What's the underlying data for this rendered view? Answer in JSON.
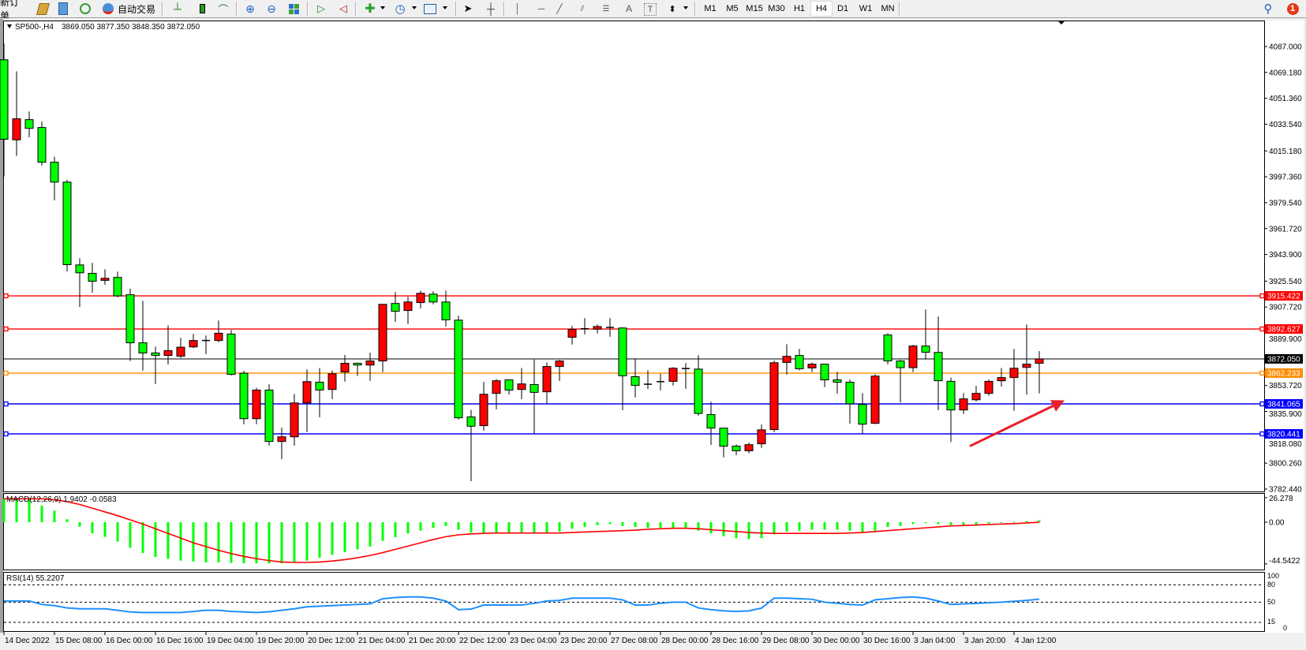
{
  "toolbar": {
    "new_order": "新订单",
    "auto_trading": "自动交易",
    "text_tool": "A",
    "label_tool": "T",
    "timeframes": [
      "M1",
      "M5",
      "M15",
      "M30",
      "H1",
      "H4",
      "D1",
      "W1",
      "MN"
    ],
    "selected_timeframe": "H4",
    "notification_count": "1"
  },
  "chart_header": {
    "symbol": "SP500-,H4",
    "ohlc": "3869.050 3877.350 3848.350 3872.050"
  },
  "macd": {
    "label": "MACD(12,26,9) 1.9402 -0.0583",
    "axis_labels": [
      "26.278",
      "0.00",
      "-44.5422"
    ]
  },
  "rsi": {
    "label": "RSI(14) 55.2207",
    "axis_labels": [
      "100",
      "80",
      "50",
      "15",
      "0"
    ]
  },
  "colors": {
    "bull": "#ff0000",
    "bear": "#00ff00",
    "macd_hist": "#00ff00",
    "macd_signal": "#ff0000",
    "rsi": "#1e90ff",
    "arrow": "#e8202a"
  },
  "chart_data": {
    "type": "candlestick",
    "symbol": "SP500-",
    "timeframe": "H4",
    "price_axis": [
      "4087.000",
      "4069.180",
      "4051.360",
      "4033.540",
      "4015.180",
      "3997.360",
      "3979.540",
      "3961.720",
      "3943.900",
      "3925.540",
      "3907.720",
      "3889.900",
      "3853.720",
      "3835.900",
      "3818.080",
      "3800.260",
      "3782.440"
    ],
    "ylim": [
      3782.44,
      4087.0
    ],
    "time_labels": [
      "14 Dec 2022",
      "15 Dec 08:00",
      "16 Dec 00:00",
      "16 Dec 16:00",
      "19 Dec 04:00",
      "19 Dec 20:00",
      "20 Dec 12:00",
      "21 Dec 04:00",
      "21 Dec 20:00",
      "22 Dec 12:00",
      "23 Dec 04:00",
      "23 Dec 20:00",
      "27 Dec 08:00",
      "28 Dec 00:00",
      "28 Dec 16:00",
      "29 Dec 08:00",
      "30 Dec 00:00",
      "30 Dec 16:00",
      "3 Jan 04:00",
      "3 Jan 20:00",
      "4 Jan 12:00"
    ],
    "bars_per_time_label": 4,
    "ohlc": [
      [
        4077.9,
        4089.1,
        3997.7,
        4023.2
      ],
      [
        4022.8,
        4070.0,
        4011.8,
        4037.3
      ],
      [
        4036.7,
        4042.3,
        4024.6,
        4030.7
      ],
      [
        4031.3,
        4035.3,
        4005.0,
        4007.4
      ],
      [
        4007.4,
        4011.2,
        3981.1,
        3993.7
      ],
      [
        3993.7,
        3995.3,
        3932.3,
        3936.9
      ],
      [
        3936.7,
        3941.3,
        3907.8,
        3931.3
      ],
      [
        3930.9,
        3938.1,
        3917.6,
        3925.5
      ],
      [
        3926.1,
        3933.7,
        3923.0,
        3927.5
      ],
      [
        3928.1,
        3932.1,
        3914.4,
        3915.4
      ],
      [
        3916.2,
        3920.4,
        3870.6,
        3883.1
      ],
      [
        3883.1,
        3912.0,
        3864.0,
        3876.1
      ],
      [
        3876.1,
        3880.5,
        3854.8,
        3874.4
      ],
      [
        3874.4,
        3895.1,
        3868.2,
        3877.7
      ],
      [
        3873.9,
        3886.5,
        3872.6,
        3880.1
      ],
      [
        3880.3,
        3889.3,
        3879.5,
        3884.7
      ],
      [
        3884.7,
        3888.1,
        3875.3,
        3884.7
      ],
      [
        3884.7,
        3898.5,
        3883.5,
        3889.7
      ],
      [
        3889.1,
        3891.9,
        3860.6,
        3861.4
      ],
      [
        3862.2,
        3863.8,
        3827.1,
        3830.9
      ],
      [
        3830.9,
        3852.2,
        3827.1,
        3850.6
      ],
      [
        3850.6,
        3854.6,
        3812.4,
        3815.2
      ],
      [
        3815.2,
        3824.7,
        3803.0,
        3818.4
      ],
      [
        3818.4,
        3847.9,
        3812.4,
        3841.7
      ],
      [
        3841.7,
        3864.8,
        3821.6,
        3856.4
      ],
      [
        3856.0,
        3865.8,
        3831.9,
        3850.6
      ],
      [
        3851.0,
        3864.0,
        3844.3,
        3861.8
      ],
      [
        3863.0,
        3874.7,
        3856.4,
        3869.0
      ],
      [
        3869.0,
        3869.6,
        3860.2,
        3867.8
      ],
      [
        3867.8,
        3876.3,
        3856.8,
        3870.6
      ],
      [
        3870.6,
        3909.6,
        3863.0,
        3909.6
      ],
      [
        3910.2,
        3918.0,
        3897.5,
        3904.8
      ],
      [
        3905.4,
        3914.8,
        3895.9,
        3911.2
      ],
      [
        3910.8,
        3919.0,
        3906.8,
        3917.2
      ],
      [
        3916.6,
        3918.6,
        3909.6,
        3911.2
      ],
      [
        3911.2,
        3919.0,
        3894.3,
        3898.9
      ],
      [
        3898.7,
        3901.8,
        3830.3,
        3831.5
      ],
      [
        3832.1,
        3836.9,
        3787.9,
        3825.7
      ],
      [
        3826.1,
        3856.2,
        3822.6,
        3847.7
      ],
      [
        3848.3,
        3858.2,
        3837.3,
        3857.0
      ],
      [
        3857.6,
        3857.6,
        3847.5,
        3850.6
      ],
      [
        3851.0,
        3865.8,
        3844.3,
        3854.8
      ],
      [
        3854.4,
        3871.6,
        3820.4,
        3849.0
      ],
      [
        3849.4,
        3869.6,
        3841.5,
        3866.8
      ],
      [
        3866.8,
        3871.4,
        3856.8,
        3870.6
      ],
      [
        3886.9,
        3894.7,
        3881.9,
        3892.3
      ],
      [
        3892.8,
        3900.1,
        3888.9,
        3892.6
      ],
      [
        3892.5,
        3895.7,
        3889.5,
        3894.3
      ],
      [
        3893.7,
        3900.1,
        3887.3,
        3893.7
      ],
      [
        3893.3,
        3893.9,
        3836.7,
        3860.4
      ],
      [
        3859.8,
        3872.4,
        3845.5,
        3853.8
      ],
      [
        3854.6,
        3864.2,
        3851.4,
        3854.6
      ],
      [
        3856.4,
        3861.8,
        3850.4,
        3856.4
      ],
      [
        3856.6,
        3866.4,
        3853.6,
        3865.6
      ],
      [
        3865.4,
        3869.2,
        3851.4,
        3865.4
      ],
      [
        3865.0,
        3874.6,
        3832.9,
        3834.5
      ],
      [
        3833.7,
        3842.5,
        3812.8,
        3824.4
      ],
      [
        3824.4,
        3824.4,
        3804.2,
        3812.0
      ],
      [
        3812.0,
        3813.2,
        3805.8,
        3808.8
      ],
      [
        3808.8,
        3814.4,
        3807.0,
        3813.0
      ],
      [
        3813.6,
        3826.9,
        3810.8,
        3823.2
      ],
      [
        3823.4,
        3870.8,
        3821.6,
        3869.4
      ],
      [
        3869.6,
        3882.1,
        3861.2,
        3873.8
      ],
      [
        3874.4,
        3878.9,
        3864.2,
        3865.2
      ],
      [
        3865.8,
        3869.6,
        3863.0,
        3868.4
      ],
      [
        3868.4,
        3868.4,
        3852.6,
        3857.6
      ],
      [
        3857.6,
        3863.2,
        3848.1,
        3856.0
      ],
      [
        3856.0,
        3857.8,
        3827.5,
        3841.1
      ],
      [
        3840.7,
        3848.5,
        3820.4,
        3827.1
      ],
      [
        3827.7,
        3861.4,
        3827.1,
        3860.2
      ],
      [
        3888.5,
        3889.7,
        3868.2,
        3870.6
      ],
      [
        3870.6,
        3871.4,
        3842.1,
        3866.0
      ],
      [
        3866.0,
        3881.7,
        3863.0,
        3880.9
      ],
      [
        3880.9,
        3906.0,
        3871.6,
        3876.6
      ],
      [
        3876.5,
        3901.2,
        3836.7,
        3857.0
      ],
      [
        3856.6,
        3859.2,
        3814.8,
        3836.9
      ],
      [
        3836.9,
        3848.5,
        3834.1,
        3844.5
      ],
      [
        3843.9,
        3853.4,
        3842.7,
        3848.3
      ],
      [
        3848.3,
        3857.8,
        3846.7,
        3856.6
      ],
      [
        3857.0,
        3865.8,
        3853.0,
        3859.2
      ],
      [
        3859.2,
        3878.9,
        3836.3,
        3865.6
      ],
      [
        3866.2,
        3895.7,
        3847.5,
        3868.4
      ],
      [
        3869.05,
        3877.35,
        3848.35,
        3872.05
      ]
    ],
    "horizontal_lines": [
      {
        "price": 3915.422,
        "label": "3915.422",
        "color": "#ff0000"
      },
      {
        "price": 3892.627,
        "label": "3892.627",
        "color": "#ff0000"
      },
      {
        "price": 3862.233,
        "label": "3862.233",
        "color": "#ff8c00"
      },
      {
        "price": 3841.065,
        "label": "3841.065",
        "color": "#0000ff"
      },
      {
        "price": 3820.441,
        "label": "3820.441",
        "color": "#0000ff"
      }
    ],
    "bid_line": {
      "price": 3872.05,
      "label": "3872.050",
      "color": "#000000"
    },
    "arrow": {
      "from": {
        "bar": 76.5,
        "price": 3812.0
      },
      "to": {
        "bar": 84,
        "price": 3843.5
      }
    },
    "macd_range": [
      -44.5422,
      26.278
    ],
    "macd_histogram": [
      25,
      25,
      24,
      17.7,
      12.4,
      3.1,
      -4.8,
      -11.8,
      -15.7,
      -20.8,
      -27.3,
      -32.9,
      -37.1,
      -39.1,
      -41,
      -42,
      -43,
      -43,
      -43.5,
      -44,
      -44,
      -44,
      -44,
      -43,
      -41,
      -38,
      -35,
      -32,
      -29,
      -26,
      -20,
      -16,
      -12,
      -9,
      -6,
      -4,
      -8,
      -11,
      -12,
      -12,
      -12,
      -12,
      -12,
      -11,
      -10,
      -7,
      -5,
      -3,
      -2,
      -4,
      -5,
      -6,
      -6,
      -6,
      -6,
      -9,
      -12,
      -15,
      -17,
      -18,
      -17,
      -13,
      -10,
      -9,
      -8,
      -8,
      -8,
      -9,
      -11,
      -9,
      -5,
      -4,
      -2,
      -1,
      -2,
      -3,
      -3,
      -2.5,
      -1.5,
      -0.5,
      0.5,
      1.2,
      1.94
    ],
    "macd_signal": [
      25,
      25,
      25,
      25,
      24,
      22,
      19,
      15,
      11,
      7,
      2.5,
      -2,
      -7,
      -12,
      -17,
      -22,
      -26,
      -30,
      -33.5,
      -36.5,
      -39,
      -41,
      -42.5,
      -43,
      -43,
      -42.5,
      -41.5,
      -40,
      -38,
      -35.5,
      -32.5,
      -29,
      -25.5,
      -22,
      -18.5,
      -15.5,
      -13.5,
      -12.5,
      -12,
      -11.5,
      -11.5,
      -11.5,
      -11.5,
      -11.5,
      -11.5,
      -11,
      -10.5,
      -10,
      -9.5,
      -9,
      -8.5,
      -7.5,
      -7,
      -6.5,
      -6.5,
      -7,
      -8,
      -9,
      -10,
      -11,
      -11.5,
      -12,
      -12,
      -12,
      -12,
      -12,
      -12,
      -11.5,
      -11,
      -10,
      -9,
      -8,
      -7,
      -6,
      -5,
      -4,
      -3.5,
      -3,
      -2.5,
      -2,
      -1.5,
      -0.8,
      -0.06
    ],
    "rsi_levels": [
      80,
      50,
      15
    ],
    "rsi": [
      52,
      52,
      52,
      46,
      44,
      40,
      38.6,
      38.6,
      38.6,
      36,
      33,
      32,
      32,
      32,
      32,
      34,
      36,
      36,
      34,
      33,
      32,
      33.5,
      36,
      38.6,
      42,
      43,
      44,
      45,
      46,
      47,
      56,
      58,
      59,
      59,
      57,
      52,
      37,
      38,
      45,
      45,
      45,
      45,
      48,
      52,
      53,
      57,
      57,
      57,
      57,
      54,
      45,
      45,
      48,
      50,
      50,
      40,
      37,
      35,
      34,
      35,
      39.7,
      57,
      57,
      56,
      55,
      50,
      48,
      46,
      45,
      54,
      56,
      58,
      59,
      57,
      52,
      46,
      47,
      48,
      49,
      50,
      51.5,
      53,
      55.22
    ]
  }
}
